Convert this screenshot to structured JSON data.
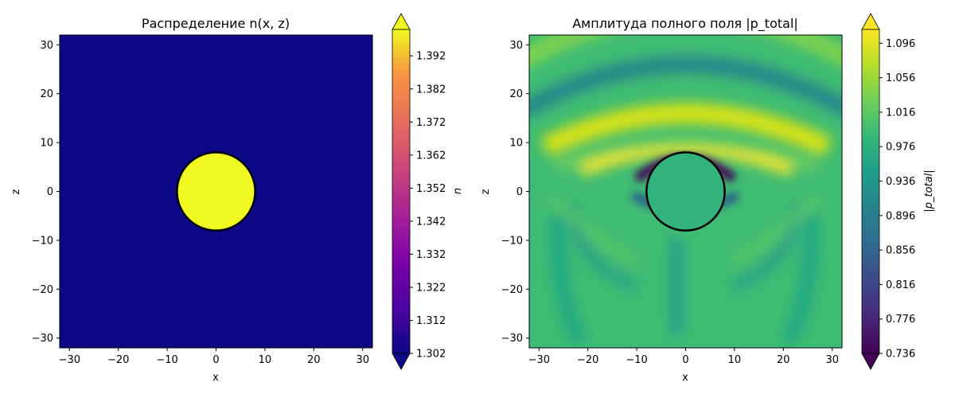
{
  "chart_data": [
    {
      "type": "heatmap",
      "title": "Распределение n(x, z)",
      "xlabel": "x",
      "ylabel": "z",
      "xlim": [
        -32,
        32
      ],
      "ylim": [
        -32,
        32
      ],
      "x_ticks": [
        -30,
        -20,
        -10,
        0,
        10,
        20,
        30
      ],
      "y_ticks": [
        -30,
        -20,
        -10,
        0,
        10,
        20,
        30
      ],
      "field": {
        "background_value": 1.302,
        "inclusion": {
          "shape": "circle",
          "center": [
            0,
            0
          ],
          "radius": 8,
          "value": 1.4
        }
      },
      "circle_outline": {
        "center": [
          0,
          0
        ],
        "radius": 8
      },
      "colorbar": {
        "label": "n",
        "colormap": "plasma",
        "ticks": [
          "1.302",
          "1.312",
          "1.322",
          "1.332",
          "1.342",
          "1.352",
          "1.362",
          "1.372",
          "1.382",
          "1.392"
        ],
        "range": [
          1.302,
          1.4
        ],
        "extend": "both"
      }
    },
    {
      "type": "heatmap",
      "title": "Амплитуда полного поля |p_total|",
      "xlabel": "x",
      "ylabel": "z",
      "xlim": [
        -32,
        32
      ],
      "ylim": [
        -32,
        32
      ],
      "x_ticks": [
        -30,
        -20,
        -10,
        0,
        10,
        20,
        30
      ],
      "y_ticks": [
        -30,
        -20,
        -10,
        0,
        10,
        20,
        30
      ],
      "field": {
        "description_values": {
          "baseline": 1.0,
          "inside_circle": 0.99,
          "bright_arcs_max": 1.11,
          "dark_min_near_circle": 0.74
        }
      },
      "circle_outline": {
        "center": [
          0,
          0
        ],
        "radius": 8
      },
      "colorbar": {
        "label": "|p_total|",
        "colormap": "viridis",
        "ticks": [
          "0.736",
          "0.776",
          "0.816",
          "0.856",
          "0.896",
          "0.936",
          "0.976",
          "1.016",
          "1.056",
          "1.096"
        ],
        "range": [
          0.736,
          1.112
        ],
        "extend": "both"
      }
    }
  ]
}
